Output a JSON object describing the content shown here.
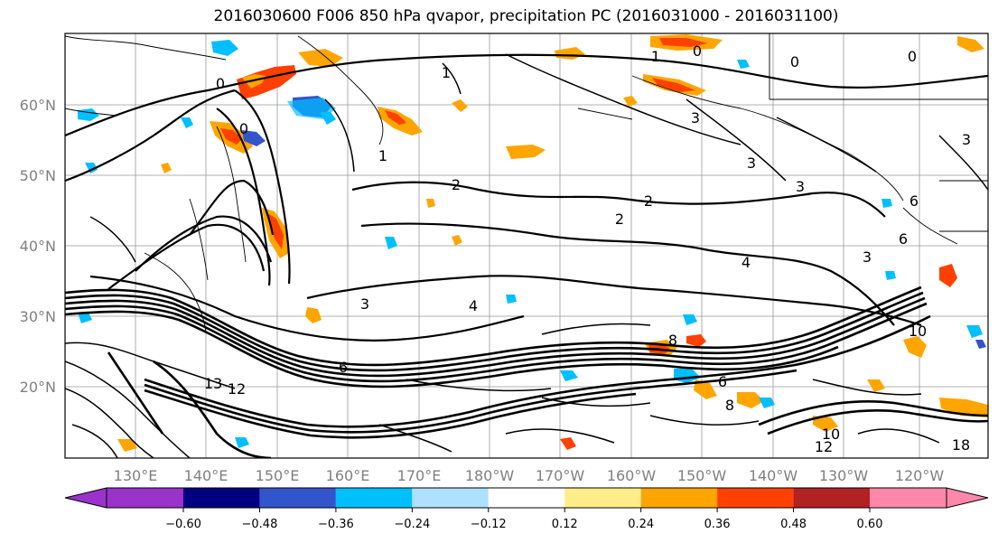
{
  "title": "2016030600 F006 850 hPa qvapor, precipitation PC (2016031000 - 2016031100)",
  "latitude_labels": [
    "60°N",
    "50°N",
    "40°N",
    "30°N",
    "20°N"
  ],
  "longitude_labels": [
    "130°E",
    "140°E",
    "150°E",
    "160°E",
    "170°E",
    "180°W",
    "170°W",
    "160°W",
    "150°W",
    "140°W",
    "130°W",
    "120°W"
  ],
  "colorbar": {
    "colors": [
      "#9933cc",
      "#000080",
      "#3355cc",
      "#00bfff",
      "#aee0ff",
      "#ffffff",
      "#ffee88",
      "#ffa500",
      "#ff4000",
      "#b22222",
      "#ff88aa"
    ],
    "ticks": [
      "−0.60",
      "−0.48",
      "−0.36",
      "−0.24",
      "−0.12",
      "0.12",
      "0.24",
      "0.36",
      "0.48",
      "0.60"
    ]
  },
  "contour_labels": [
    {
      "text": "0"
    },
    {
      "text": "0"
    },
    {
      "text": "0"
    },
    {
      "text": "0"
    },
    {
      "text": "0"
    },
    {
      "text": "1"
    },
    {
      "text": "1"
    },
    {
      "text": "1"
    },
    {
      "text": "2"
    },
    {
      "text": "2"
    },
    {
      "text": "2"
    },
    {
      "text": "3"
    },
    {
      "text": "3"
    },
    {
      "text": "3"
    },
    {
      "text": "3"
    },
    {
      "text": "3"
    },
    {
      "text": "3"
    },
    {
      "text": "4"
    },
    {
      "text": "4"
    },
    {
      "text": "6"
    },
    {
      "text": "6"
    },
    {
      "text": "6"
    },
    {
      "text": "6"
    },
    {
      "text": "8"
    },
    {
      "text": "8"
    },
    {
      "text": "10"
    },
    {
      "text": "10"
    },
    {
      "text": "12"
    },
    {
      "text": "12"
    },
    {
      "text": "13"
    },
    {
      "text": "18"
    }
  ]
}
